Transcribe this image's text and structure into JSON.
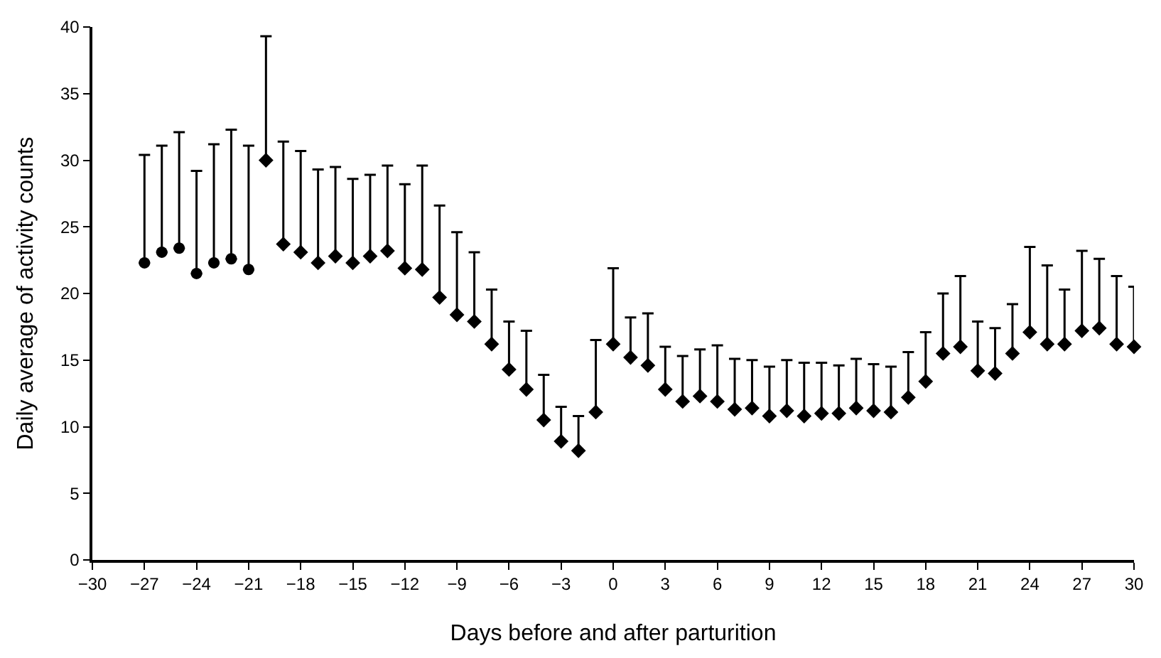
{
  "chart_data": {
    "type": "scatter",
    "xlabel": "Days before and after parturition",
    "ylabel": "Daily average of activity counts",
    "xlim": [
      -30,
      30
    ],
    "xticks": [
      -30,
      -27,
      -24,
      -21,
      -18,
      -15,
      -12,
      -9,
      -6,
      -3,
      0,
      3,
      6,
      9,
      12,
      15,
      18,
      21,
      24,
      27,
      30
    ],
    "ylim": [
      0,
      40
    ],
    "yticks": [
      0,
      5,
      10,
      15,
      20,
      25,
      30,
      35,
      40
    ],
    "series": [
      {
        "color": "#000000",
        "marker": "circle",
        "x": [
          -27,
          -26,
          -25,
          -24,
          -23,
          -22,
          -21
        ],
        "values": [
          22.3,
          23.1,
          23.4,
          21.5,
          22.3,
          22.6,
          21.8
        ],
        "errors": [
          [
            22.3,
            30.4
          ],
          [
            23.1,
            31.1
          ],
          [
            23.4,
            32.1
          ],
          [
            21.5,
            29.2
          ],
          [
            22.3,
            31.2
          ],
          [
            22.6,
            32.3
          ],
          [
            21.8,
            31.1
          ]
        ]
      },
      {
        "color": "#000000",
        "marker": "diamond",
        "x": [
          -20,
          -19,
          -18,
          -17,
          -16,
          -15,
          -14,
          -13,
          -12,
          -11,
          -10,
          -9,
          -8,
          -7,
          -6,
          -5,
          -4,
          -3,
          -2,
          -1,
          0,
          1,
          2,
          3,
          4,
          5,
          6,
          7,
          8,
          9,
          10,
          11,
          12,
          13,
          14,
          15,
          16,
          17,
          18,
          19,
          20,
          21,
          22,
          23,
          24,
          25,
          26,
          27,
          28,
          29,
          30
        ],
        "values": [
          30.0,
          23.7,
          23.1,
          22.3,
          22.8,
          22.3,
          22.8,
          23.2,
          21.9,
          21.8,
          19.7,
          18.4,
          17.9,
          16.2,
          14.3,
          12.8,
          10.5,
          8.9,
          8.2,
          11.1,
          16.2,
          15.2,
          14.6,
          12.8,
          11.9,
          12.3,
          11.9,
          11.3,
          11.4,
          10.8,
          11.2,
          10.8,
          11.0,
          11.0,
          11.4,
          11.2,
          11.1,
          12.2,
          13.4,
          15.5,
          16.0,
          14.2,
          14.0,
          15.5,
          17.1,
          16.2,
          16.2,
          17.2,
          17.4,
          16.2,
          16.0
        ],
        "errors": [
          [
            30.0,
            39.3
          ],
          [
            23.7,
            31.4
          ],
          [
            23.1,
            30.7
          ],
          [
            22.3,
            29.3
          ],
          [
            22.8,
            29.5
          ],
          [
            22.3,
            28.6
          ],
          [
            22.8,
            28.9
          ],
          [
            23.2,
            29.6
          ],
          [
            21.9,
            28.2
          ],
          [
            21.8,
            29.6
          ],
          [
            19.7,
            26.6
          ],
          [
            18.4,
            24.6
          ],
          [
            17.9,
            23.1
          ],
          [
            16.2,
            20.3
          ],
          [
            14.3,
            17.9
          ],
          [
            12.8,
            17.2
          ],
          [
            10.5,
            13.9
          ],
          [
            8.9,
            11.5
          ],
          [
            8.2,
            10.8
          ],
          [
            11.1,
            16.5
          ],
          [
            16.2,
            21.9
          ],
          [
            15.2,
            18.2
          ],
          [
            14.6,
            18.5
          ],
          [
            12.8,
            16.0
          ],
          [
            11.9,
            15.3
          ],
          [
            12.3,
            15.8
          ],
          [
            11.9,
            16.1
          ],
          [
            11.3,
            15.1
          ],
          [
            11.4,
            15.0
          ],
          [
            10.8,
            14.5
          ],
          [
            11.2,
            15.0
          ],
          [
            10.8,
            14.8
          ],
          [
            11.0,
            14.8
          ],
          [
            11.0,
            14.6
          ],
          [
            11.4,
            15.1
          ],
          [
            11.2,
            14.7
          ],
          [
            11.1,
            14.5
          ],
          [
            12.2,
            15.6
          ],
          [
            13.4,
            17.1
          ],
          [
            15.5,
            20.0
          ],
          [
            16.0,
            21.3
          ],
          [
            14.2,
            17.9
          ],
          [
            14.0,
            17.4
          ],
          [
            15.5,
            19.2
          ],
          [
            17.1,
            23.5
          ],
          [
            16.2,
            22.1
          ],
          [
            16.2,
            20.3
          ],
          [
            17.2,
            23.2
          ],
          [
            17.4,
            22.6
          ],
          [
            16.2,
            21.3
          ],
          [
            16.0,
            20.5
          ]
        ]
      }
    ]
  }
}
